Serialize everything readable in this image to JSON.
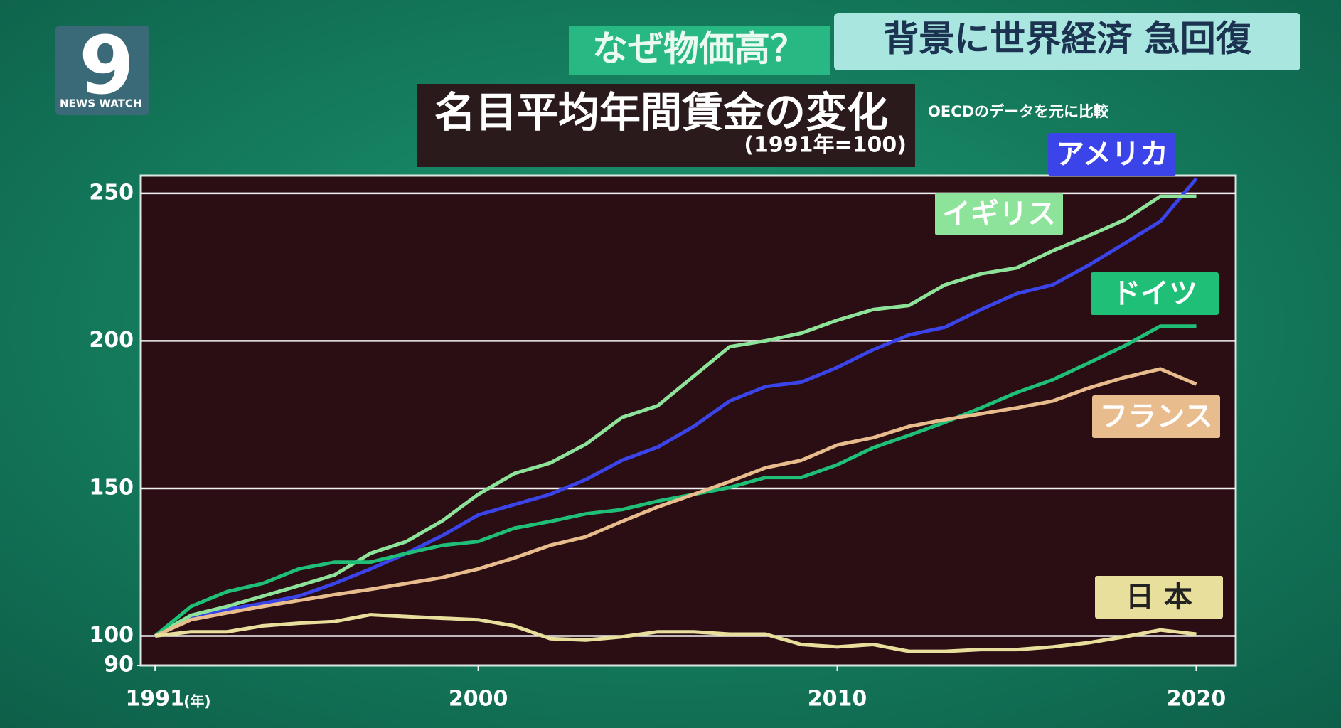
{
  "header": {
    "tag": "なぜ物価高？",
    "headline": "背景に世界経済 急回復",
    "logo_number": "9",
    "logo_text": "NEWS WATCH"
  },
  "chart_data": {
    "type": "line",
    "title": "名目平均年間賃金の変化",
    "subtitle": "(1991年=100)",
    "note": "OECDのデータを元に比較",
    "x_unit": "(年)",
    "x": [
      1991,
      1992,
      1993,
      1994,
      1995,
      1996,
      1997,
      1998,
      1999,
      2000,
      2001,
      2002,
      2003,
      2004,
      2005,
      2006,
      2007,
      2008,
      2009,
      2010,
      2011,
      2012,
      2013,
      2014,
      2015,
      2016,
      2017,
      2018,
      2019,
      2020
    ],
    "series": [
      {
        "name": "アメリカ",
        "color": "#3a44e8",
        "values": [
          100,
          106,
          109,
          111,
          113.5,
          117.8,
          122.7,
          128,
          134,
          141,
          144.5,
          148,
          153,
          159.5,
          164,
          171,
          179.6,
          184.5,
          186,
          191,
          197,
          202,
          204.6,
          210.6,
          216,
          219,
          225.6,
          233,
          240.5,
          255
        ]
      },
      {
        "name": "イギリス",
        "color": "#8ee39a",
        "values": [
          100,
          107,
          110,
          113.5,
          117,
          120.7,
          128,
          132,
          139,
          148,
          155,
          158.6,
          165,
          174,
          178,
          188,
          198,
          200,
          202.6,
          207,
          210.6,
          212,
          219,
          222.7,
          224.7,
          230.5,
          235.6,
          241,
          249,
          249
        ]
      },
      {
        "name": "ドイツ",
        "color": "#1fbf78",
        "values": [
          100,
          110,
          115,
          117.8,
          122.7,
          125,
          125,
          128,
          130.7,
          132,
          136.5,
          138.8,
          141.4,
          142.8,
          145.7,
          148,
          150.3,
          153.7,
          153.7,
          158,
          163.8,
          168,
          172.4,
          177.3,
          182.5,
          186.8,
          192.5,
          198.3,
          205,
          205
        ]
      },
      {
        "name": "フランス",
        "color": "#e8bc8c",
        "values": [
          100,
          105.5,
          107.8,
          110,
          112,
          114,
          115.8,
          117.8,
          119.8,
          122.7,
          126.4,
          130.7,
          133.6,
          138.8,
          143.7,
          148,
          152.3,
          157,
          159.5,
          164.7,
          167.2,
          171,
          173.3,
          175.3,
          177.3,
          179.6,
          184,
          187.6,
          190.5,
          185.3
        ]
      },
      {
        "name": "日 本",
        "color": "#e8df9c",
        "values": [
          100,
          101.4,
          101.4,
          103.4,
          104.3,
          104.9,
          107.2,
          106.6,
          106,
          105.5,
          103.4,
          99.1,
          98.6,
          99.7,
          101.4,
          101.4,
          100.6,
          100.6,
          97.1,
          96.3,
          97.1,
          94.8,
          94.8,
          95.4,
          95.4,
          96.3,
          97.7,
          99.7,
          102,
          100.6
        ]
      }
    ],
    "xlim": [
      1990.6,
      2021.1
    ],
    "xticks": [
      1991,
      2000,
      2010,
      2020
    ],
    "ylim": [
      90,
      256
    ],
    "yticks": [
      90,
      100,
      150,
      200,
      250
    ],
    "grid": true
  }
}
